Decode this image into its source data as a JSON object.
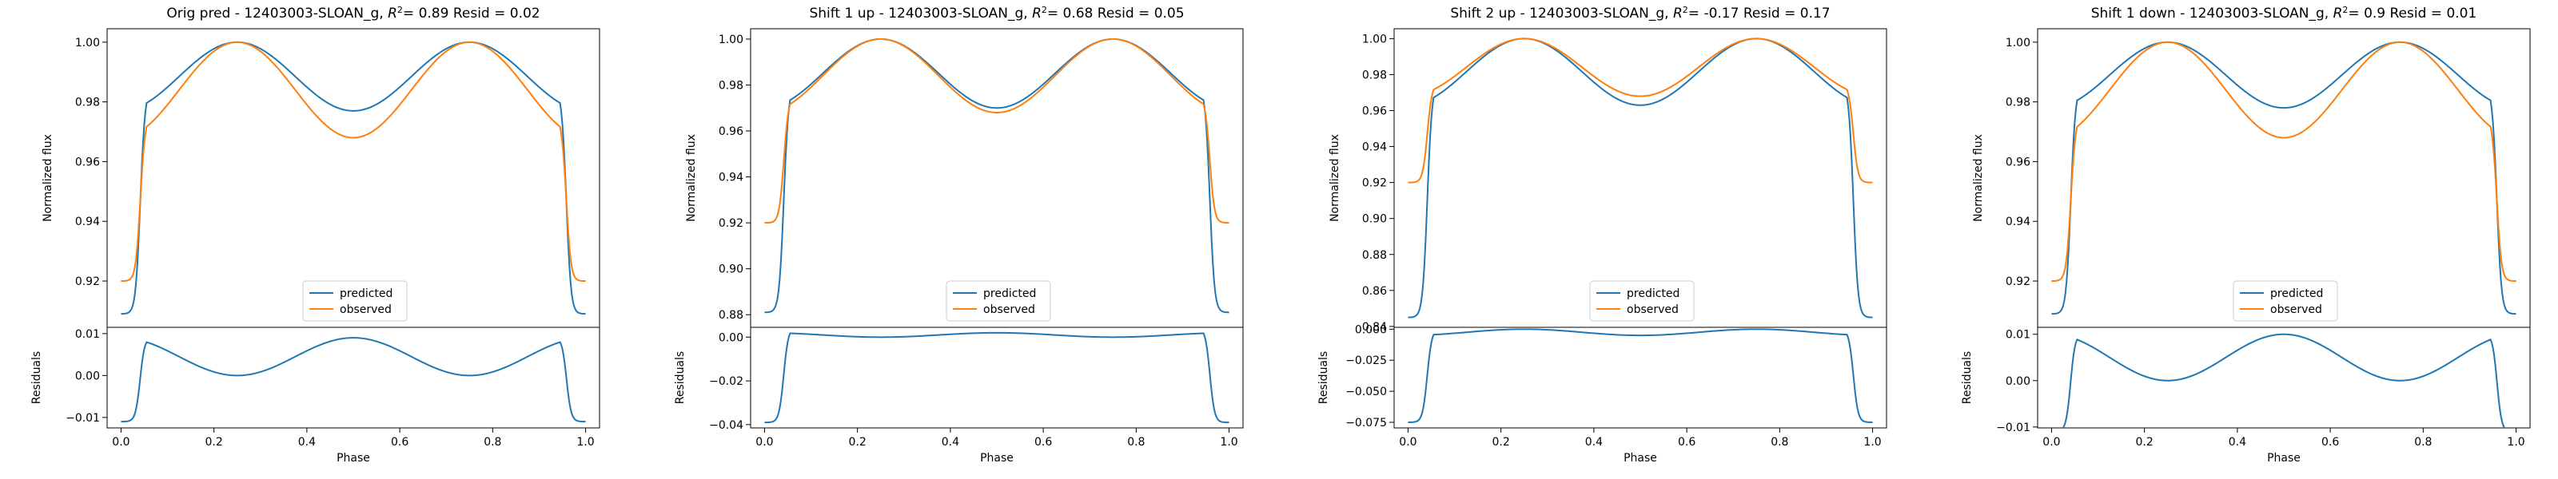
{
  "colors": {
    "predicted": "#1f77b4",
    "observed": "#ff7f0e"
  },
  "chart_data": [
    {
      "type": "line",
      "title_text": "Orig pred - 12403003-SLOAN_g, ",
      "title_r2": "= 0.89 Resid = 0.02",
      "xlabel": "Phase",
      "ylabel_top": "Normalized flux",
      "ylabel_bottom": "Residuals",
      "xlim": [
        -0.03,
        1.03
      ],
      "xticks": [
        0.0,
        0.2,
        0.4,
        0.6,
        0.8,
        1.0
      ],
      "xtick_labels": [
        "0.0",
        "0.2",
        "0.4",
        "0.6",
        "0.8",
        "1.0"
      ],
      "ylim_top": [
        0.9045,
        1.0045
      ],
      "yticks_top": [
        0.92,
        0.94,
        0.96,
        0.98,
        1.0
      ],
      "ytick_labels_top": [
        "0.92",
        "0.94",
        "0.96",
        "0.98",
        "1.00"
      ],
      "ylim_bottom": [
        -0.0125,
        0.0115
      ],
      "yticks_bottom": [
        -0.01,
        0.0,
        0.01
      ],
      "ytick_labels_bottom": [
        "−0.01",
        "0.00",
        "0.01"
      ],
      "legend": {
        "placement": "lower-center",
        "entries": [
          "predicted",
          "observed"
        ]
      },
      "series": [
        {
          "name": "predicted",
          "params": {
            "base": 0.909,
            "dip": 0.023,
            "cap": 0.978,
            "shift": 0
          }
        },
        {
          "name": "observed",
          "params": {
            "base": 0.92,
            "dip": 0.032,
            "cap": 0.968,
            "shift": 0
          }
        }
      ]
    },
    {
      "type": "line",
      "title_text": "Shift 1 up - 12403003-SLOAN_g, ",
      "title_r2": "= 0.68 Resid = 0.05",
      "xlabel": "Phase",
      "ylabel_top": "Normalized flux",
      "ylabel_bottom": "Residuals",
      "xlim": [
        -0.03,
        1.03
      ],
      "xticks": [
        0.0,
        0.2,
        0.4,
        0.6,
        0.8,
        1.0
      ],
      "xtick_labels": [
        "0.0",
        "0.2",
        "0.4",
        "0.6",
        "0.8",
        "1.0"
      ],
      "ylim_top": [
        0.8745,
        1.0045
      ],
      "yticks_top": [
        0.88,
        0.9,
        0.92,
        0.94,
        0.96,
        0.98,
        1.0
      ],
      "ytick_labels_top": [
        "0.88",
        "0.90",
        "0.92",
        "0.94",
        "0.96",
        "0.98",
        "1.00"
      ],
      "ylim_bottom": [
        -0.0415,
        0.0045
      ],
      "yticks_bottom": [
        -0.04,
        -0.02,
        0.0
      ],
      "ytick_labels_bottom": [
        "−0.04",
        "−0.02",
        "0.00"
      ],
      "legend": {
        "placement": "lower-center",
        "entries": [
          "predicted",
          "observed"
        ]
      },
      "series": [
        {
          "name": "predicted",
          "params": {
            "base": 0.881,
            "dip": 0.03,
            "cap": 0.97,
            "shift": 0
          }
        },
        {
          "name": "observed",
          "params": {
            "base": 0.92,
            "dip": 0.032,
            "cap": 0.968,
            "shift": 0
          }
        }
      ]
    },
    {
      "type": "line",
      "title_text": "Shift 2 up - 12403003-SLOAN_g, ",
      "title_r2": "= -0.17 Resid = 0.17",
      "xlabel": "Phase",
      "ylabel_top": "Normalized flux",
      "ylabel_bottom": "Residuals",
      "xlim": [
        -0.03,
        1.03
      ],
      "xticks": [
        0.0,
        0.2,
        0.4,
        0.6,
        0.8,
        1.0
      ],
      "xtick_labels": [
        "0.0",
        "0.2",
        "0.4",
        "0.6",
        "0.8",
        "1.0"
      ],
      "ylim_top": [
        0.8395,
        1.0055
      ],
      "yticks_top": [
        0.84,
        0.86,
        0.88,
        0.9,
        0.92,
        0.94,
        0.96,
        0.98,
        1.0
      ],
      "ytick_labels_top": [
        "0.84",
        "0.86",
        "0.88",
        "0.90",
        "0.92",
        "0.94",
        "0.96",
        "0.98",
        "1.00"
      ],
      "ylim_bottom": [
        -0.0795,
        0.0015
      ],
      "yticks_bottom": [
        -0.075,
        -0.05,
        -0.025,
        0.0
      ],
      "ytick_labels_bottom": [
        "−0.075",
        "−0.050",
        "−0.025",
        "0.000"
      ],
      "legend": {
        "placement": "lower-center",
        "entries": [
          "predicted",
          "observed"
        ]
      },
      "series": [
        {
          "name": "predicted",
          "params": {
            "base": 0.845,
            "dip": 0.037,
            "cap": 0.963,
            "shift": 0
          }
        },
        {
          "name": "observed",
          "params": {
            "base": 0.92,
            "dip": 0.032,
            "cap": 0.968,
            "shift": 0
          }
        }
      ]
    },
    {
      "type": "line",
      "title_text": "Shift 1 down - 12403003-SLOAN_g, ",
      "title_r2": "= 0.9 Resid = 0.01",
      "xlabel": "Phase",
      "ylabel_top": "Normalized flux",
      "ylabel_bottom": "Residuals",
      "xlim": [
        -0.03,
        1.03
      ],
      "xticks": [
        0.0,
        0.2,
        0.4,
        0.6,
        0.8,
        1.0
      ],
      "xtick_labels": [
        "0.0",
        "0.2",
        "0.4",
        "0.6",
        "0.8",
        "1.0"
      ],
      "ylim_top": [
        0.9045,
        1.0045
      ],
      "yticks_top": [
        0.92,
        0.94,
        0.96,
        0.98,
        1.0
      ],
      "ytick_labels_top": [
        "0.92",
        "0.94",
        "0.96",
        "0.98",
        "1.00"
      ],
      "ylim_bottom": [
        -0.0102,
        0.0115
      ],
      "yticks_bottom": [
        -0.01,
        0.0,
        0.01
      ],
      "ytick_labels_bottom": [
        "−0.01",
        "0.00",
        "0.01"
      ],
      "legend": {
        "placement": "lower-center",
        "entries": [
          "predicted",
          "observed"
        ]
      },
      "series": [
        {
          "name": "predicted",
          "params": {
            "base": 0.909,
            "dip": 0.022,
            "cap": 0.978,
            "shift": 0.0
          }
        },
        {
          "name": "observed",
          "params": {
            "base": 0.92,
            "dip": 0.032,
            "cap": 0.968,
            "shift": 0
          }
        }
      ]
    }
  ]
}
